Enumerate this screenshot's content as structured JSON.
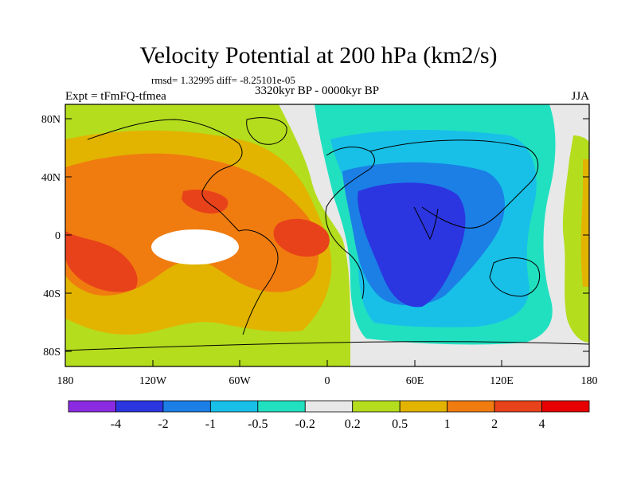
{
  "header": {
    "title": "Velocity Potential at 200 hPa (km2/s)",
    "stats": "rmsd= 1.32995 diff= -8.25101e-05",
    "experiment": "Expt = tFmFQ-tfmea",
    "period": "3320kyr BP - 0000kyr BP",
    "season": "JJA"
  },
  "axes": {
    "y_ticks": [
      "80N",
      "40N",
      "0",
      "40S",
      "80S"
    ],
    "x_ticks": [
      "180",
      "120W",
      "60W",
      "0",
      "60E",
      "120E",
      "180"
    ]
  },
  "colorbar": {
    "colors": [
      "#8a2be2",
      "#2b35e0",
      "#1b7fe6",
      "#18c0e8",
      "#21e0c0",
      "#e8e8e8",
      "#b4dd1e",
      "#e2b400",
      "#f07c10",
      "#e8421a",
      "#e80000"
    ],
    "labels": [
      "-4",
      "-2",
      "-1",
      "-0.5",
      "-0.2",
      "0.2",
      "0.5",
      "1",
      "2",
      "4"
    ]
  },
  "map_colors": {
    "ocean_background": "#e8e8e8",
    "positive_anomaly_colors": [
      "#b4dd1e",
      "#e2b400",
      "#f07c10",
      "#e8421a",
      "#e80000"
    ],
    "negative_anomaly_colors": [
      "#21e0c0",
      "#18c0e8",
      "#1b7fe6",
      "#2b35e0"
    ]
  }
}
